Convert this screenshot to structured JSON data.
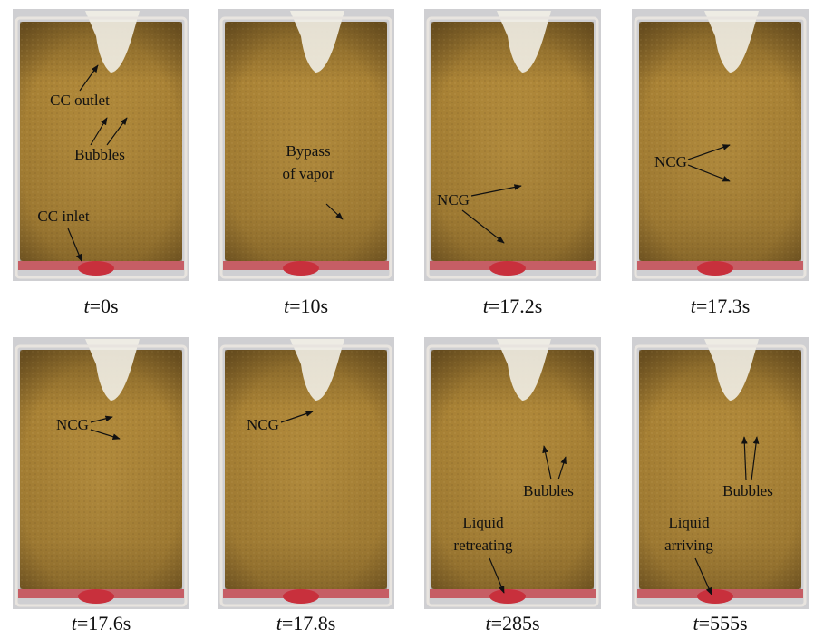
{
  "panels": [
    {
      "caption": {
        "variable": "t",
        "text": "=0s"
      },
      "annotations": [
        [
          "CC outlet"
        ],
        [
          "Bubbles"
        ],
        [
          "CC inlet"
        ]
      ]
    },
    {
      "caption": {
        "variable": "t",
        "text": "=10s"
      },
      "annotations": [
        [
          "Bypass",
          "of vapor"
        ]
      ]
    },
    {
      "caption": {
        "variable": "t",
        "text": "=17.2s"
      },
      "annotations": [
        [
          "NCG"
        ]
      ]
    },
    {
      "caption": {
        "variable": "t",
        "text": "=17.3s"
      },
      "annotations": [
        [
          "NCG"
        ]
      ]
    },
    {
      "caption": {
        "variable": "t",
        "text": "=17.6s"
      },
      "annotations": [
        [
          "NCG"
        ]
      ]
    },
    {
      "caption": {
        "variable": "t",
        "text": "=17.8s"
      },
      "annotations": [
        [
          "NCG"
        ]
      ]
    },
    {
      "caption": {
        "variable": "t",
        "text": "=285s"
      },
      "annotations": [
        [
          "Bubbles"
        ],
        [
          "Liquid",
          "retreating"
        ]
      ]
    },
    {
      "caption": {
        "variable": "t",
        "text": "=555s"
      },
      "annotations": [
        [
          "Bubbles"
        ],
        [
          "Liquid",
          "arriving"
        ]
      ]
    }
  ]
}
